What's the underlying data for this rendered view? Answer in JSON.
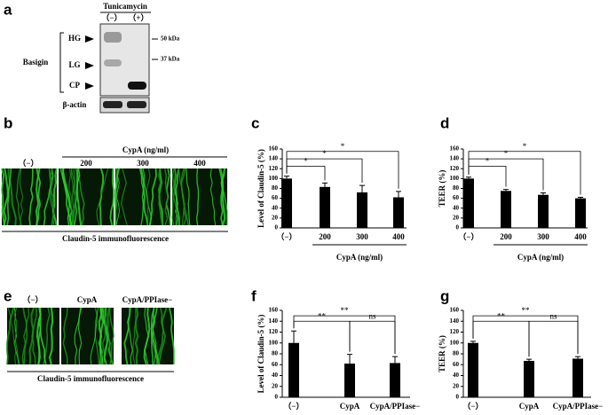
{
  "figure": {
    "panel_labels": [
      "a",
      "b",
      "c",
      "d",
      "e",
      "f",
      "g"
    ],
    "blot": {
      "treatment": "Tunicamycin",
      "lanes": [
        "（−）",
        "（+）"
      ],
      "protein": "Basigin",
      "bands": [
        "HG",
        "LG",
        "CP"
      ],
      "markers": [
        "50 kDa",
        "37 kDa"
      ],
      "loading": "β-actin"
    },
    "b": {
      "images": [
        "（−）",
        "200",
        "300",
        "400"
      ],
      "group": "CypA (ng/ml)",
      "caption": "Claudin-5 immunofluorescence"
    },
    "e": {
      "images": [
        "（−）",
        "CypA",
        "CypA/PPIase−"
      ],
      "caption": "Claudin-5 immunofluorescence"
    }
  },
  "chart_data": [
    {
      "type": "bar",
      "ylabel": "Level of Claudin-5 (%)",
      "categories": [
        "（−）",
        "200",
        "300",
        "400"
      ],
      "values": [
        100,
        83,
        72,
        62
      ],
      "errors": [
        5,
        8,
        14,
        12
      ],
      "color": "#000000",
      "ylim": [
        0,
        160
      ],
      "yticks": [
        0,
        20,
        40,
        60,
        80,
        100,
        120,
        140,
        160
      ],
      "xgroup": "CypA (ng/ml)",
      "annotations": [
        "*",
        "*",
        "*"
      ]
    },
    {
      "type": "bar",
      "ylabel": "TEER (%)",
      "categories": [
        "（−）",
        "200",
        "300",
        "400"
      ],
      "values": [
        100,
        75,
        67,
        60
      ],
      "errors": [
        3,
        3,
        4,
        2
      ],
      "color": "#000000",
      "ylim": [
        0,
        160
      ],
      "yticks": [
        0,
        20,
        40,
        60,
        80,
        100,
        120,
        140,
        160
      ],
      "xgroup": "CypA (ng/ml)",
      "annotations": [
        "*",
        "*",
        "*"
      ]
    },
    {
      "type": "bar",
      "ylabel": "Level of Claudin-5 (%)",
      "categories": [
        "（−）",
        "CypA",
        "CypA/PPIase−"
      ],
      "values": [
        100,
        62,
        63
      ],
      "errors": [
        22,
        17,
        12
      ],
      "color": "#000000",
      "ylim": [
        0,
        160
      ],
      "yticks": [
        0,
        20,
        40,
        60,
        80,
        100,
        120,
        140,
        160
      ],
      "annotations": [
        "**",
        "**",
        "ns"
      ]
    },
    {
      "type": "bar",
      "ylabel": "TEER (%)",
      "categories": [
        "（−）",
        "CypA",
        "CypA/PPIase−"
      ],
      "values": [
        100,
        67,
        71
      ],
      "errors": [
        3,
        3,
        4
      ],
      "color": "#000000",
      "ylim": [
        0,
        160
      ],
      "yticks": [
        0,
        20,
        40,
        60,
        80,
        100,
        120,
        140,
        160
      ],
      "annotations": [
        "**",
        "**",
        "ns"
      ]
    }
  ]
}
